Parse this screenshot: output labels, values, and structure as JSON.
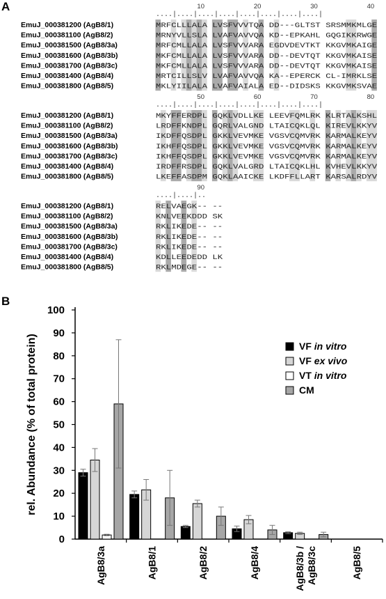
{
  "panel_a_label": "A",
  "panel_b_label": "B",
  "alignment": {
    "labels": [
      "EmuJ_000381200 (AgB8/1)",
      "EmuJ_000381100 (AgB8/2)",
      "EmuJ_000381500 (AgB8/3a)",
      "EmuJ_000381600 (AgB8/3b)",
      "EmuJ_000381700 (AgB8/3c)",
      "EmuJ_000381400 (AgB8/4)",
      "EmuJ_000381800 (AgB8/5)"
    ],
    "blocks": [
      {
        "ruler_numbers": [
          "10",
          "20",
          "30",
          "40"
        ],
        "dots": "....|....|....|....|....|....|....|....|",
        "rows": [
          "MRFCLLLALA LVSFVVVTQA DD---GLTST SRSMMKMLGE",
          "MRNYVLLSLA LVAFVAVVQA KD--EPKAHL GQGIKKRWGE",
          "MRFCMLLALA LVSFVVVARA EGDVDEVTKT KKGVMKAIGE",
          "MKFCMLLALA LVSFVVVARA DD--DEVTQT KKGVMKAISE",
          "MKFCMLLALA LVSFVVVARA DD--DEVTQT KKGVMKAISE",
          "MRTCILLSLV LVAFVAVVQA KA--EPERCK CL-IMRKLSE",
          "MKLYIILALA LVAFVAIALA ED--DIDSKS KKGVMKSVAE"
        ]
      },
      {
        "ruler_numbers": [
          "50",
          "60",
          "70",
          "80"
        ],
        "dots": "....|....|....|....|....|....|....|....|",
        "rows": [
          "MKYFFERDPL GQKLVDLLKE LEEVFQMLRK KLRTALKSHL",
          "LRDFFKNDPL GQRLVALGND LTAICQKLQL KIREVLKKYV",
          "IKDFFQSDPL GKKLVEVMKE VGSVCQMVRK KARMALKEYV",
          "IKHFFQSDPL GKKLVEVMKE VGSVCQMVRK KARMALKEYV",
          "IKHFFQSDPL GKKLVEVMKE VGSVCQMVRK KARMALKEYV",
          "IRDFFRSDPL GQKLVALGRD LTAICQKLHL KVHEVLKKYV",
          "LKEFFASDPM GQKLAAICKE LKDFFLLART KARSALRDYV"
        ]
      },
      {
        "ruler_numbers": [
          "90"
        ],
        "dots": "....|....|..",
        "rows": [
          "RELVAEGK-- --",
          "KNLVEEKDDD SK",
          "RKLIKEDE-- --",
          "RKLIKEDE-- --",
          "RKLIKEDE-- --",
          "KDLLEEDEDD LK",
          "RKLMDEGE-- --"
        ]
      }
    ]
  },
  "colors": {
    "VF_in_vitro": "#000000",
    "VF_ex_vivo": "#d6d6d6",
    "VT_in_vitro": "#ffffff",
    "CM": "#a6a6a6",
    "shade_dark": "#aaaaaa",
    "shade_light": "#d9d9d9"
  },
  "chart_data": {
    "type": "bar",
    "ylabel": "rel. Abundance (% of total protein)",
    "xlabel": "",
    "ylim": [
      0,
      100
    ],
    "yticks": [
      "0",
      "10",
      "20",
      "30",
      "40",
      "50",
      "60",
      "70",
      "80",
      "90",
      "100"
    ],
    "categories": [
      "AgB8/3a",
      "AgB8/1",
      "AgB8/2",
      "AgB8/4",
      "AgB8/3b / AgB8/3c",
      "AgB8/5"
    ],
    "category_lines": [
      [
        "AgB8/3a"
      ],
      [
        "AgB8/1"
      ],
      [
        "AgB8/2"
      ],
      [
        "AgB8/4"
      ],
      [
        "AgB8/3b /",
        "AgB8/3c"
      ],
      [
        "AgB8/5"
      ]
    ],
    "legend_position": "top-right",
    "grid": false,
    "series": [
      {
        "name": "VF in vitro",
        "name_main": "VF",
        "name_italic": "in vitro",
        "color": "#000000",
        "values": [
          29,
          19.5,
          5.5,
          4.5,
          2.8,
          0
        ],
        "errors": [
          1.5,
          1.5,
          0.5,
          1.2,
          0.4,
          0
        ]
      },
      {
        "name": "VF ex vivo",
        "name_main": "VF",
        "name_italic": "ex vivo",
        "color": "#d6d6d6",
        "values": [
          34.5,
          21.5,
          15.5,
          8.5,
          2.5,
          0
        ],
        "errors": [
          5,
          4.5,
          1.5,
          1.8,
          0.5,
          0
        ]
      },
      {
        "name": "VT in vitro",
        "name_main": "VT",
        "name_italic": "in vitro",
        "color": "#ffffff",
        "values": [
          1.8,
          0,
          0,
          0,
          0,
          0
        ],
        "errors": [
          0.3,
          0,
          0,
          0,
          0,
          0
        ]
      },
      {
        "name": "CM",
        "name_main": "CM",
        "name_italic": "",
        "color": "#a6a6a6",
        "values": [
          59,
          18,
          10,
          4,
          2,
          0
        ],
        "errors": [
          28,
          12,
          4,
          2,
          1,
          0
        ]
      }
    ]
  }
}
